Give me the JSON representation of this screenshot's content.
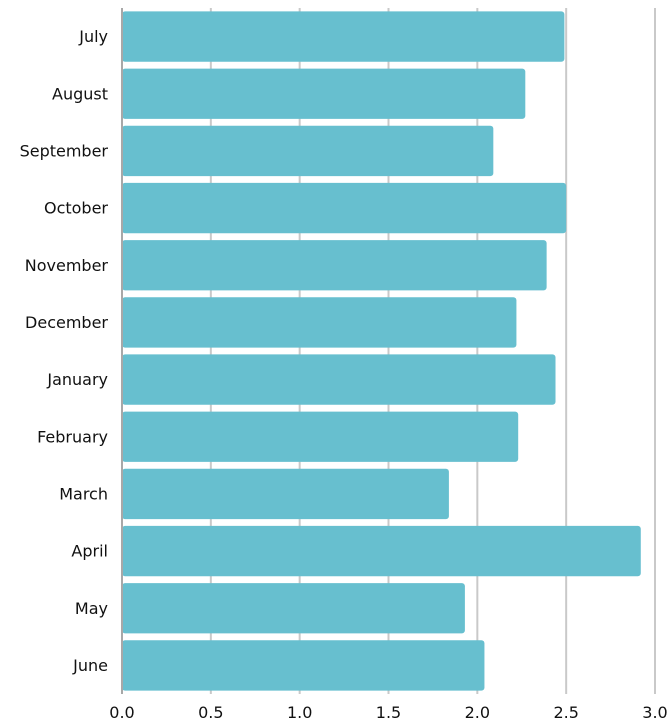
{
  "chart_data": {
    "type": "bar",
    "orientation": "horizontal",
    "categories": [
      "July",
      "August",
      "September",
      "October",
      "November",
      "December",
      "January",
      "February",
      "March",
      "April",
      "May",
      "June"
    ],
    "values": [
      2.49,
      2.27,
      2.09,
      2.5,
      2.39,
      2.22,
      2.44,
      2.23,
      1.84,
      2.92,
      1.93,
      2.04
    ],
    "title": "",
    "xlabel": "",
    "ylabel": "",
    "xlim": [
      0,
      3.0
    ],
    "x_ticks": [
      "0.0",
      "0.5",
      "1.0",
      "1.5",
      "2.0",
      "2.5",
      "3.0"
    ],
    "grid": "vertical",
    "legend": "none",
    "bar_color": "#67bfcf"
  }
}
